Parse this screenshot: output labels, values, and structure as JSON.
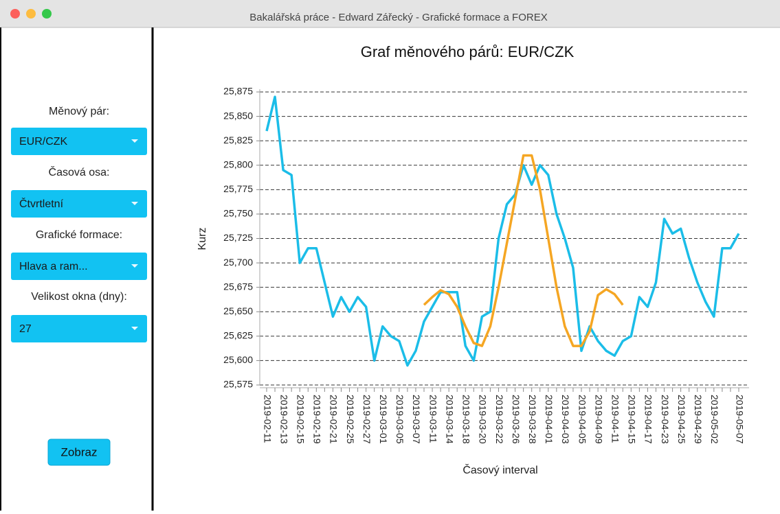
{
  "window": {
    "title": "Bakalářská práce - Edward Zářecký - Grafické formace a FOREX"
  },
  "sidebar": {
    "pair_label": "Měnový pár:",
    "pair_value": "EUR/CZK",
    "time_label": "Časová osa:",
    "time_value": "Čtvrtletní",
    "pattern_label": "Grafické formace:",
    "pattern_value": "Hlava a ram...",
    "window_label": "Velikost okna (dny):",
    "window_value": "27",
    "button": "Zobraz"
  },
  "chart_data": {
    "type": "line",
    "title": "Graf měnového párů: EUR/CZK",
    "x_label": "Časový interval",
    "y_label": "Kurz",
    "categories": [
      "2019-02-11",
      null,
      "2019-02-13",
      null,
      "2019-02-15",
      null,
      "2019-02-19",
      null,
      "2019-02-21",
      null,
      "2019-02-25",
      null,
      "2019-02-27",
      null,
      "2019-03-01",
      null,
      "2019-03-05",
      null,
      "2019-03-07",
      null,
      "2019-03-11",
      null,
      "2019-03-14",
      null,
      "2019-03-18",
      null,
      "2019-03-20",
      null,
      "2019-03-22",
      null,
      "2019-03-26",
      null,
      "2019-03-28",
      null,
      "2019-04-01",
      null,
      "2019-04-03",
      null,
      "2019-04-05",
      null,
      "2019-04-09",
      null,
      "2019-04-11",
      null,
      "2019-04-15",
      null,
      "2019-04-17",
      null,
      "2019-04-23",
      null,
      "2019-04-25",
      null,
      "2019-04-29",
      null,
      "2019-05-02",
      null,
      null,
      "2019-05-07"
    ],
    "series": [
      {
        "color": "#1bbde8",
        "values": [
          25.835,
          25.87,
          25.795,
          25.79,
          25.7,
          25.715,
          25.715,
          25.68,
          25.645,
          25.665,
          25.65,
          25.665,
          25.655,
          25.6,
          25.635,
          25.625,
          25.62,
          25.595,
          25.61,
          25.64,
          25.655,
          25.67,
          25.67,
          25.67,
          25.615,
          25.6,
          25.645,
          25.65,
          25.725,
          25.76,
          25.77,
          25.8,
          25.78,
          25.8,
          25.79,
          25.75,
          25.725,
          25.695,
          25.61,
          25.635,
          25.62,
          25.61,
          25.605,
          25.62,
          25.625,
          25.665,
          25.655,
          25.68,
          25.745,
          25.73,
          25.735,
          25.705,
          25.68,
          25.66,
          25.645,
          25.715,
          25.715,
          25.73
        ]
      },
      {
        "color": "#f5a623",
        "values": [
          null,
          null,
          null,
          null,
          null,
          null,
          null,
          null,
          null,
          null,
          null,
          null,
          null,
          null,
          null,
          null,
          null,
          null,
          null,
          25.657,
          25.665,
          25.672,
          25.668,
          25.655,
          25.635,
          25.618,
          25.615,
          25.635,
          25.675,
          25.72,
          25.765,
          25.81,
          25.81,
          25.775,
          25.725,
          25.675,
          25.635,
          25.615,
          25.615,
          25.63,
          25.667,
          25.673,
          25.668,
          25.657,
          null,
          null,
          null,
          null,
          null,
          null,
          null,
          null,
          null,
          null,
          null,
          null,
          null,
          null
        ]
      }
    ],
    "ylim": [
      25.575,
      25.875
    ],
    "yticks": [
      {
        "value": 25.575,
        "label": "25,575"
      },
      {
        "value": 25.6,
        "label": "25,600"
      },
      {
        "value": 25.625,
        "label": "25,625"
      },
      {
        "value": 25.65,
        "label": "25,650"
      },
      {
        "value": 25.675,
        "label": "25,675"
      },
      {
        "value": 25.7,
        "label": "25,700"
      },
      {
        "value": 25.725,
        "label": "25,725"
      },
      {
        "value": 25.75,
        "label": "25,750"
      },
      {
        "value": 25.775,
        "label": "25,775"
      },
      {
        "value": 25.8,
        "label": "25,800"
      },
      {
        "value": 25.825,
        "label": "25,825"
      },
      {
        "value": 25.85,
        "label": "25,850"
      },
      {
        "value": 25.875,
        "label": "25,875"
      }
    ],
    "grid": true
  }
}
